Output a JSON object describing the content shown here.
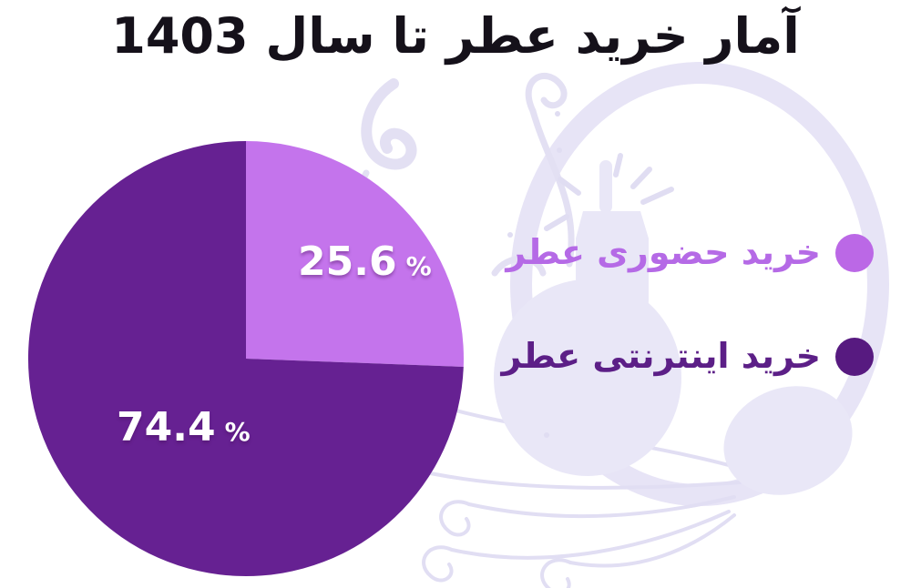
{
  "title": "آمار خرید عطر تا سال 1403",
  "percent_sign": "%",
  "legend": {
    "position": "right",
    "items": [
      {
        "label": "خرید حضوری عطر",
        "dot_color": "#bb68e6",
        "text_color": "#b56ae6"
      },
      {
        "label": "خرید اینترنتی عطر",
        "dot_color": "#571a80",
        "text_color": "#5c1f87"
      }
    ]
  },
  "chart_data": {
    "type": "pie",
    "title": "آمار خرید عطر تا سال 1403",
    "labels": [
      "خرید حضوری عطر",
      "خرید اینترنتی عطر"
    ],
    "values": [
      25.6,
      74.4
    ],
    "value_labels": [
      "25.6",
      "74.4"
    ],
    "colors": [
      "#c474ec",
      "#662192"
    ],
    "start_angle_deg": 0,
    "direction": "clockwise",
    "legend_position": "right",
    "background": "faint lavender perfume-atomizer illustration"
  },
  "colors": {
    "title_text": "#15111a",
    "value_label_text": "#ffffff",
    "illustration_fill": "#e9e7f7",
    "illustration_stroke": "#e3e0f3"
  }
}
